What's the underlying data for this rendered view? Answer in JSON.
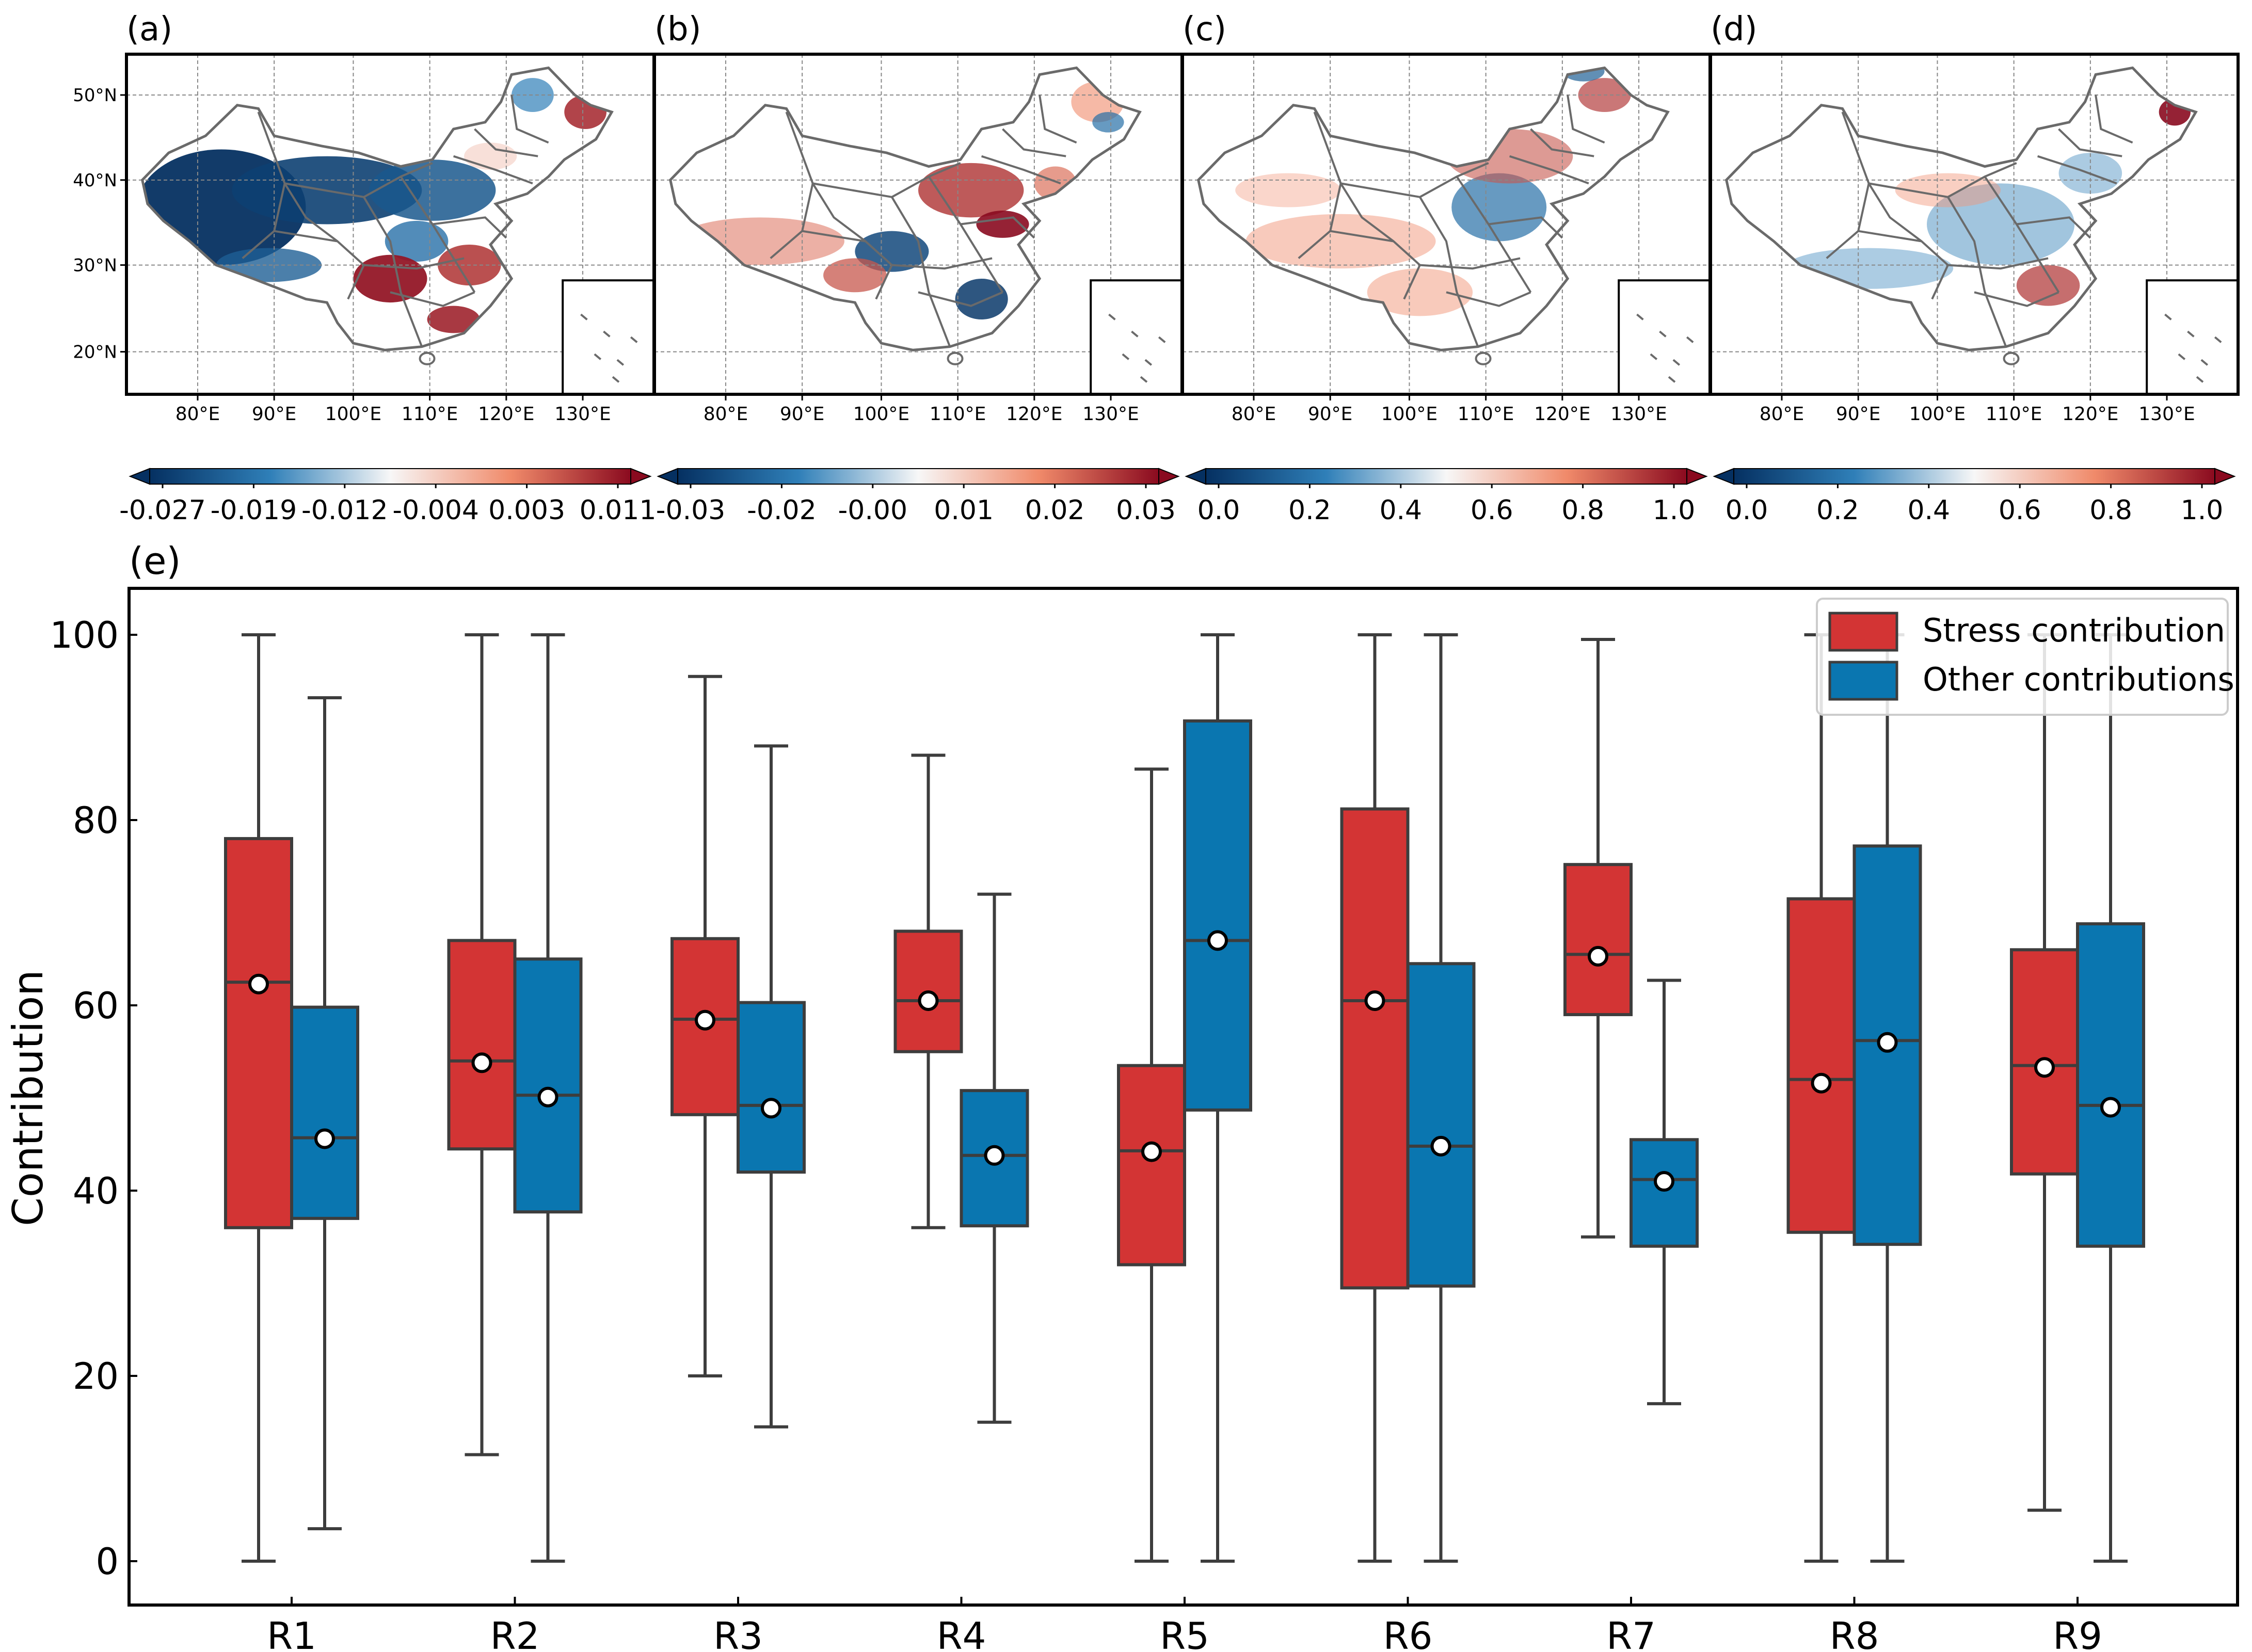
{
  "colors": {
    "stress": "#d33434",
    "other": "#0a76b0",
    "axis": "#000000",
    "whisker": "#3d3d3d",
    "grid": "#888888",
    "map_outline": "#6a6a6a",
    "neg_dark": "#053061",
    "neg_mid": "#2f7fb8",
    "neutral": "#f7f7f7",
    "pos_mid": "#f08a6a",
    "pos_dark": "#8a0a1f"
  },
  "maps": {
    "lat_ticks": [
      "50°N",
      "40°N",
      "30°N",
      "20°N"
    ],
    "lon_ticks": [
      "80°E",
      "90°E",
      "100°E",
      "110°E",
      "120°E",
      "130°E"
    ],
    "panels": [
      {
        "label": "(a)",
        "pattern": "a",
        "cbar_ticks": [
          "-0.027",
          "-0.019",
          "-0.012",
          "-0.004",
          "0.003",
          "0.011"
        ]
      },
      {
        "label": "(b)",
        "pattern": "b",
        "cbar_ticks": [
          "-0.03",
          "-0.02",
          "-0.00",
          "0.01",
          "0.02",
          "0.03"
        ]
      },
      {
        "label": "(c)",
        "pattern": "c",
        "cbar_ticks": [
          "0.0",
          "0.2",
          "0.4",
          "0.6",
          "0.8",
          "1.0"
        ]
      },
      {
        "label": "(d)",
        "pattern": "d",
        "cbar_ticks": [
          "0.0",
          "0.2",
          "0.4",
          "0.6",
          "0.8",
          "1.0"
        ]
      }
    ]
  },
  "chart_data": {
    "type": "box",
    "panel_label": "(e)",
    "title": "",
    "xlabel": "",
    "ylabel": "Contribution",
    "ylim": [
      0,
      100
    ],
    "yticks": [
      0,
      20,
      40,
      60,
      80,
      100
    ],
    "categories": [
      "R1",
      "R2",
      "R3",
      "R4",
      "R5",
      "R6",
      "R7",
      "R8",
      "R9"
    ],
    "legend": {
      "position": "top-right",
      "entries": [
        "Stress contribution",
        "Other contributions"
      ]
    },
    "series": [
      {
        "name": "Stress contribution",
        "boxes": [
          {
            "min": 0,
            "q1": 36,
            "median": 62.5,
            "q3": 78,
            "max": 100,
            "mean": 62.3
          },
          {
            "min": 11.5,
            "q1": 44.5,
            "median": 54,
            "q3": 67,
            "max": 100,
            "mean": 53.8
          },
          {
            "min": 20,
            "q1": 48.2,
            "median": 58.5,
            "q3": 67.2,
            "max": 95.5,
            "mean": 58.4
          },
          {
            "min": 36,
            "q1": 55,
            "median": 60.5,
            "q3": 68,
            "max": 87,
            "mean": 60.5
          },
          {
            "min": 0,
            "q1": 32,
            "median": 44.3,
            "q3": 53.5,
            "max": 85.5,
            "mean": 44.2
          },
          {
            "min": 0,
            "q1": 29.5,
            "median": 60.5,
            "q3": 81.2,
            "max": 100,
            "mean": 60.5
          },
          {
            "min": 35,
            "q1": 59,
            "median": 65.5,
            "q3": 75.2,
            "max": 99.5,
            "mean": 65.3
          },
          {
            "min": 0,
            "q1": 35.5,
            "median": 52,
            "q3": 71.5,
            "max": 100,
            "mean": 51.6
          },
          {
            "min": 5.5,
            "q1": 41.8,
            "median": 53.5,
            "q3": 66,
            "max": 100,
            "mean": 53.3
          }
        ]
      },
      {
        "name": "Other contributions",
        "boxes": [
          {
            "min": 3.5,
            "q1": 37,
            "median": 45.7,
            "q3": 59.8,
            "max": 93.2,
            "mean": 45.6
          },
          {
            "min": 0,
            "q1": 37.7,
            "median": 50.3,
            "q3": 65,
            "max": 100,
            "mean": 50.1
          },
          {
            "min": 14.5,
            "q1": 42,
            "median": 49.2,
            "q3": 60.3,
            "max": 88,
            "mean": 48.9
          },
          {
            "min": 15,
            "q1": 36.2,
            "median": 43.8,
            "q3": 50.8,
            "max": 72,
            "mean": 43.8
          },
          {
            "min": 0,
            "q1": 48.7,
            "median": 67,
            "q3": 90.7,
            "max": 100,
            "mean": 67
          },
          {
            "min": 0,
            "q1": 29.7,
            "median": 44.8,
            "q3": 64.5,
            "max": 100,
            "mean": 44.8
          },
          {
            "min": 17,
            "q1": 34,
            "median": 41.2,
            "q3": 45.5,
            "max": 62.7,
            "mean": 41
          },
          {
            "min": 0,
            "q1": 34.2,
            "median": 56.2,
            "q3": 77.2,
            "max": 100,
            "mean": 56
          },
          {
            "min": 0,
            "q1": 34,
            "median": 49.2,
            "q3": 68.8,
            "max": 100,
            "mean": 49
          }
        ]
      }
    ]
  }
}
